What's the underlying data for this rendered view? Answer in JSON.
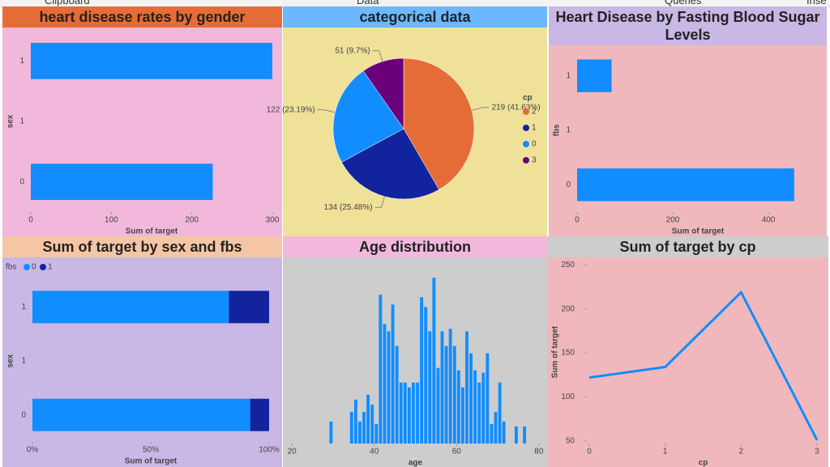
{
  "ribbon": [
    "Clipboard",
    "Data",
    "Queries",
    "Inse"
  ],
  "chart_data": [
    {
      "type": "hbar",
      "title": "heart disease rates by gender",
      "title_color": "#e66c37",
      "background": "#f2b8dc",
      "categories": [
        "1",
        "1",
        "0"
      ],
      "values": [
        300,
        null,
        226
      ],
      "color": "#118dff",
      "xlim": [
        0,
        300
      ],
      "xticks": [
        0,
        100,
        200,
        300
      ],
      "xlabel": "Sum of target",
      "ylabel": "sex"
    },
    {
      "type": "pie",
      "title": "categorical data",
      "title_color": "#6cb8ff",
      "background": "#f0e199",
      "legend_title": "cp",
      "categories": [
        "2",
        "1",
        "0",
        "3"
      ],
      "values": [
        219,
        134,
        122,
        51
      ],
      "value_labels": [
        "219 (41.63%)",
        "134 (25.48%)",
        "122 (23.19%)",
        "51 (9.7%)"
      ],
      "colors": [
        "#e66c37",
        "#12239e",
        "#118dff",
        "#6b007b"
      ]
    },
    {
      "type": "hbar",
      "title": "Heart Disease by Fasting Blood Sugar Levels",
      "title_color": "#c9b7e6",
      "background": "#f0b8bc",
      "categories": [
        "1",
        "1",
        "0"
      ],
      "values": [
        72,
        null,
        454
      ],
      "color": "#118dff",
      "xlim": [
        0,
        505
      ],
      "xticks": [
        0,
        200,
        400
      ],
      "xlabel": "Sum of target",
      "ylabel": "fbs"
    },
    {
      "type": "stacked_hbar",
      "title": "Sum of target by sex and fbs",
      "title_color": "#f5c6a5",
      "background": "#c9b7e6",
      "legend_title": "fbs",
      "categories": [
        "1",
        "1",
        "0"
      ],
      "series": [
        {
          "name": "0",
          "color": "#118dff",
          "values": [
            83,
            null,
            92
          ]
        },
        {
          "name": "1",
          "color": "#12239e",
          "values": [
            17,
            null,
            8
          ]
        }
      ],
      "xlim": [
        0,
        100
      ],
      "xticks": [
        {
          "value": 0,
          "label": "0%"
        },
        {
          "value": 50,
          "label": "50%"
        },
        {
          "value": 100,
          "label": "100%"
        }
      ],
      "xlabel": "Sum of target",
      "ylabel": "sex"
    },
    {
      "type": "histogram",
      "title": "Age distribution",
      "title_color": "#f2b8dc",
      "background": "#cdcdcd",
      "color": "#118dff",
      "bins": [
        29,
        30,
        31,
        32,
        33,
        34,
        35,
        36,
        37,
        38,
        39,
        40,
        41,
        42,
        43,
        44,
        45,
        46,
        47,
        48,
        49,
        50,
        51,
        52,
        53,
        54,
        55,
        56,
        57,
        58,
        59,
        60,
        61,
        62,
        63,
        64,
        65,
        66,
        67,
        68,
        69,
        70,
        71,
        72,
        73,
        74,
        75,
        76,
        77,
        78
      ],
      "values": [
        9,
        0,
        0,
        0,
        0,
        13,
        18,
        9,
        13,
        20,
        16,
        8,
        61,
        49,
        46,
        57,
        40,
        25,
        25,
        23,
        25,
        25,
        60,
        56,
        46,
        68,
        31,
        46,
        40,
        47,
        40,
        30,
        23,
        46,
        37,
        30,
        25,
        29,
        37,
        8,
        13,
        25,
        9,
        0,
        0,
        7,
        0,
        7,
        0
      ],
      "xlim": [
        18,
        82
      ],
      "ylim": [
        0,
        75
      ],
      "xticks": [
        20,
        40,
        60,
        80
      ],
      "xlabel": "age"
    },
    {
      "type": "line",
      "title": "Sum of target by cp",
      "title_color": "#cdcdcd",
      "background": "#f0b8bc",
      "color": "#118dff",
      "x": [
        0,
        1,
        2,
        3
      ],
      "values": [
        122,
        134,
        219,
        51
      ],
      "xlim": [
        0,
        3
      ],
      "xticks": [
        0,
        1,
        2,
        3
      ],
      "ylim": [
        47,
        255
      ],
      "yticks": [
        50,
        100,
        150,
        200,
        250
      ],
      "xlabel": "cp",
      "ylabel": "Sum of target"
    }
  ]
}
